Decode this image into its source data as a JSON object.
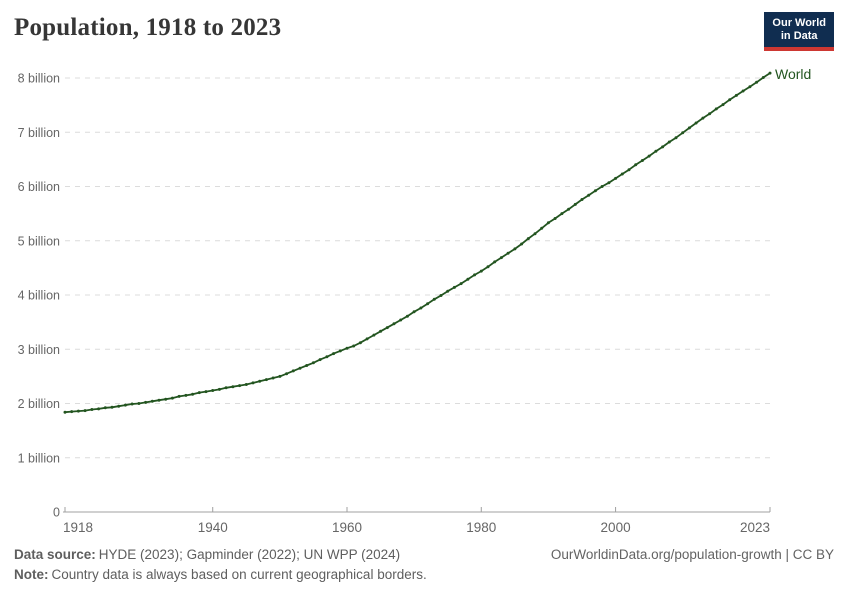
{
  "header": {
    "title": "Population, 1918 to 2023",
    "logo": {
      "line1": "Our World",
      "line2": "in Data",
      "bg_color": "#102d50",
      "accent_color": "#cd3732"
    }
  },
  "chart_data": {
    "type": "line",
    "title": "Population, 1918 to 2023",
    "xlabel": "",
    "ylabel": "",
    "x_range": [
      1918,
      2023
    ],
    "y_range": [
      0,
      8.09
    ],
    "grid": "dashed horizontal gridlines",
    "legend_position": "end-of-line label",
    "colors": {
      "grid": "#dcdcdc",
      "axis_line": "#a0a0a0",
      "axis_text": "#666666"
    },
    "y_ticks": [
      {
        "v": 0,
        "label": "0"
      },
      {
        "v": 1,
        "label": "1 billion"
      },
      {
        "v": 2,
        "label": "2 billion"
      },
      {
        "v": 3,
        "label": "3 billion"
      },
      {
        "v": 4,
        "label": "4 billion"
      },
      {
        "v": 5,
        "label": "5 billion"
      },
      {
        "v": 6,
        "label": "6 billion"
      },
      {
        "v": 7,
        "label": "7 billion"
      },
      {
        "v": 8,
        "label": "8 billion"
      }
    ],
    "x_ticks": [
      {
        "year": 1918,
        "label": "1918"
      },
      {
        "year": 1940,
        "label": "1940"
      },
      {
        "year": 1960,
        "label": "1960"
      },
      {
        "year": 1980,
        "label": "1980"
      },
      {
        "year": 2000,
        "label": "2000"
      },
      {
        "year": 2023,
        "label": "2023"
      }
    ],
    "series": [
      {
        "name": "World",
        "color": "#235520",
        "unit": "billion",
        "points": [
          [
            1918,
            1.84
          ],
          [
            1919,
            1.85
          ],
          [
            1920,
            1.86
          ],
          [
            1921,
            1.87
          ],
          [
            1922,
            1.89
          ],
          [
            1923,
            1.9
          ],
          [
            1924,
            1.92
          ],
          [
            1925,
            1.93
          ],
          [
            1926,
            1.95
          ],
          [
            1927,
            1.97
          ],
          [
            1928,
            1.99
          ],
          [
            1929,
            2.0
          ],
          [
            1930,
            2.02
          ],
          [
            1931,
            2.04
          ],
          [
            1932,
            2.06
          ],
          [
            1933,
            2.08
          ],
          [
            1934,
            2.1
          ],
          [
            1935,
            2.13
          ],
          [
            1936,
            2.15
          ],
          [
            1937,
            2.17
          ],
          [
            1938,
            2.2
          ],
          [
            1939,
            2.22
          ],
          [
            1940,
            2.24
          ],
          [
            1941,
            2.26
          ],
          [
            1942,
            2.29
          ],
          [
            1943,
            2.31
          ],
          [
            1944,
            2.33
          ],
          [
            1945,
            2.35
          ],
          [
            1946,
            2.38
          ],
          [
            1947,
            2.41
          ],
          [
            1948,
            2.44
          ],
          [
            1949,
            2.47
          ],
          [
            1950,
            2.5
          ],
          [
            1951,
            2.55
          ],
          [
            1952,
            2.6
          ],
          [
            1953,
            2.65
          ],
          [
            1954,
            2.7
          ],
          [
            1955,
            2.75
          ],
          [
            1956,
            2.81
          ],
          [
            1957,
            2.86
          ],
          [
            1958,
            2.92
          ],
          [
            1959,
            2.97
          ],
          [
            1960,
            3.02
          ],
          [
            1961,
            3.06
          ],
          [
            1962,
            3.12
          ],
          [
            1963,
            3.19
          ],
          [
            1964,
            3.26
          ],
          [
            1965,
            3.33
          ],
          [
            1966,
            3.4
          ],
          [
            1967,
            3.47
          ],
          [
            1968,
            3.54
          ],
          [
            1969,
            3.61
          ],
          [
            1970,
            3.69
          ],
          [
            1971,
            3.76
          ],
          [
            1972,
            3.84
          ],
          [
            1973,
            3.92
          ],
          [
            1974,
            3.99
          ],
          [
            1975,
            4.07
          ],
          [
            1976,
            4.14
          ],
          [
            1977,
            4.21
          ],
          [
            1978,
            4.29
          ],
          [
            1979,
            4.37
          ],
          [
            1980,
            4.44
          ],
          [
            1981,
            4.52
          ],
          [
            1982,
            4.61
          ],
          [
            1983,
            4.69
          ],
          [
            1984,
            4.77
          ],
          [
            1985,
            4.85
          ],
          [
            1986,
            4.94
          ],
          [
            1987,
            5.04
          ],
          [
            1988,
            5.13
          ],
          [
            1989,
            5.23
          ],
          [
            1990,
            5.33
          ],
          [
            1991,
            5.41
          ],
          [
            1992,
            5.5
          ],
          [
            1993,
            5.58
          ],
          [
            1994,
            5.67
          ],
          [
            1995,
            5.76
          ],
          [
            1996,
            5.84
          ],
          [
            1997,
            5.92
          ],
          [
            1998,
            6.0
          ],
          [
            1999,
            6.07
          ],
          [
            2000,
            6.15
          ],
          [
            2001,
            6.23
          ],
          [
            2002,
            6.31
          ],
          [
            2003,
            6.4
          ],
          [
            2004,
            6.48
          ],
          [
            2005,
            6.56
          ],
          [
            2006,
            6.65
          ],
          [
            2007,
            6.73
          ],
          [
            2008,
            6.82
          ],
          [
            2009,
            6.9
          ],
          [
            2010,
            6.99
          ],
          [
            2011,
            7.08
          ],
          [
            2012,
            7.17
          ],
          [
            2013,
            7.26
          ],
          [
            2014,
            7.34
          ],
          [
            2015,
            7.43
          ],
          [
            2016,
            7.51
          ],
          [
            2017,
            7.6
          ],
          [
            2018,
            7.68
          ],
          [
            2019,
            7.76
          ],
          [
            2020,
            7.84
          ],
          [
            2021,
            7.92
          ],
          [
            2022,
            8.01
          ],
          [
            2023,
            8.09
          ]
        ]
      }
    ]
  },
  "footer": {
    "data_source_label": "Data source:",
    "data_source_text": "HYDE (2023); Gapminder (2022); UN WPP (2024)",
    "note_label": "Note:",
    "note_text": "Country data is always based on current geographical borders.",
    "link_text": "OurWorldinData.org/population-growth | CC BY"
  }
}
